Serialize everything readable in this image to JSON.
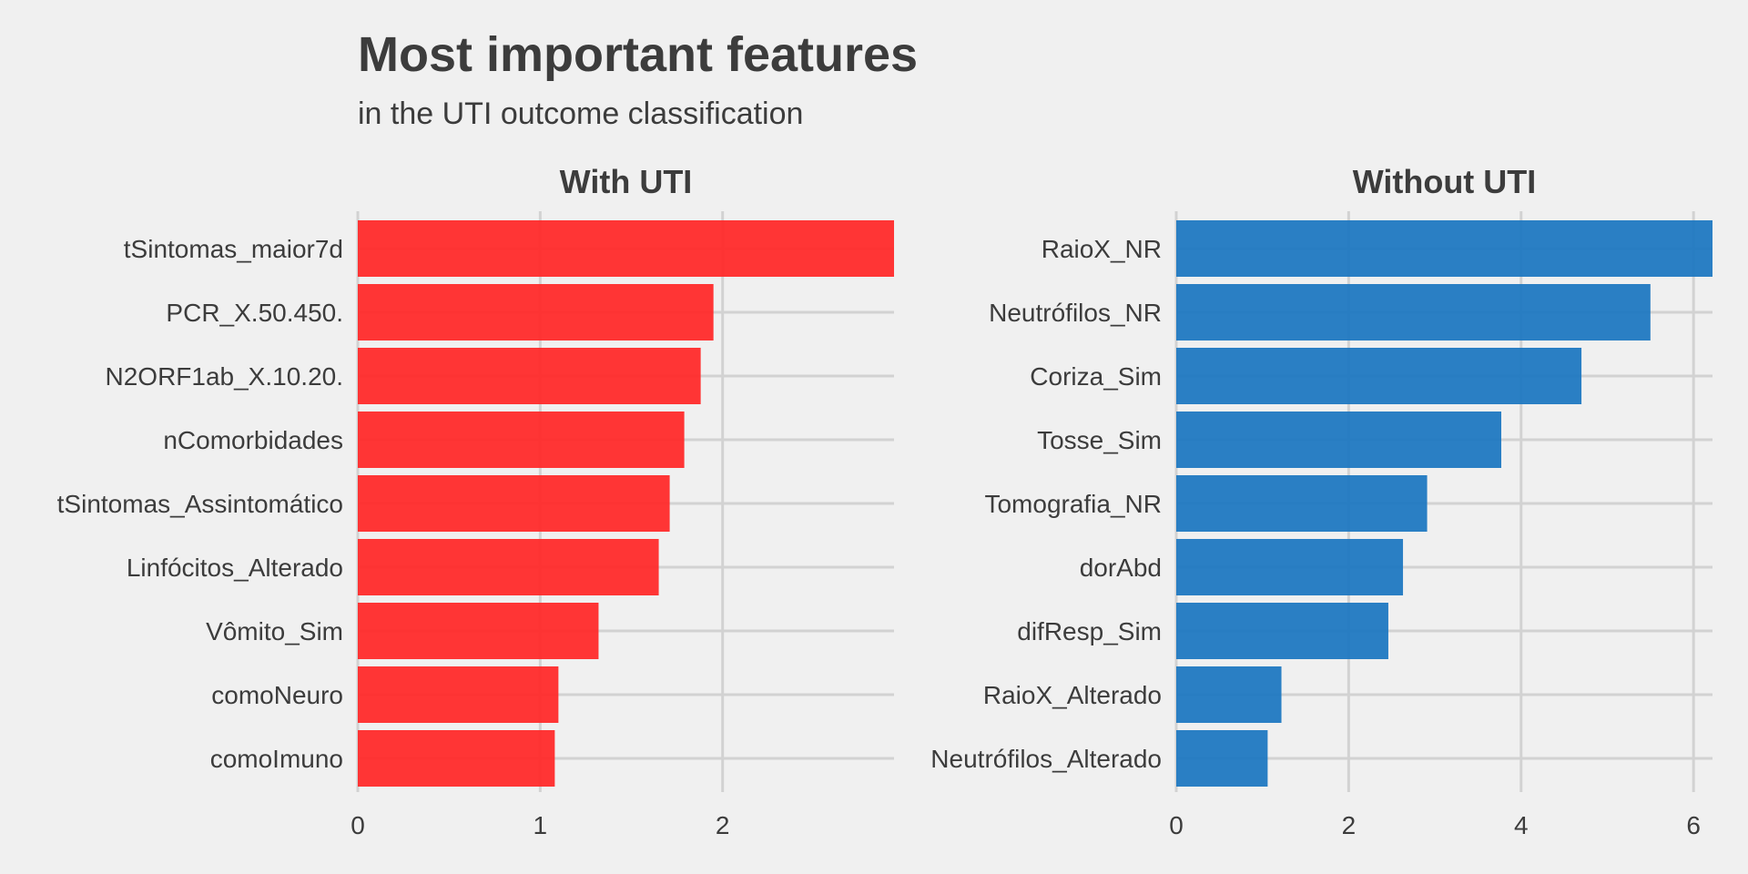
{
  "title": "Most important features",
  "subtitle": "in the UTI outcome classification",
  "chart_data": [
    {
      "type": "bar",
      "orientation": "horizontal",
      "title": "With UTI",
      "color": "#ff2a2a",
      "categories": [
        "tSintomas_maior7d",
        "PCR_X.50.450.",
        "N2ORF1ab_X.10.20.",
        "nComorbidades",
        "tSintomas_Assintomático",
        "Linfócitos_Alterado",
        "Vômito_Sim",
        "comoNeuro",
        "comoImuno"
      ],
      "values": [
        2.94,
        1.95,
        1.88,
        1.79,
        1.71,
        1.65,
        1.32,
        1.1,
        1.08
      ],
      "xlim": [
        0,
        2.94
      ],
      "xticks": [
        0,
        1,
        2
      ],
      "xlabel": "",
      "ylabel": "",
      "grid": true
    },
    {
      "type": "bar",
      "orientation": "horizontal",
      "title": "Without UTI",
      "color": "#1f78c1",
      "categories": [
        "RaioX_NR",
        "Neutrófilos_NR",
        "Coriza_Sim",
        "Tosse_Sim",
        "Tomografia_NR",
        "dorAbd",
        "difResp_Sim",
        "RaioX_Alterado",
        "Neutrófilos_Alterado"
      ],
      "values": [
        6.22,
        5.5,
        4.7,
        3.77,
        2.91,
        2.63,
        2.46,
        1.22,
        1.06
      ],
      "xlim": [
        0,
        6.22
      ],
      "xticks": [
        0,
        2,
        4,
        6
      ],
      "xlabel": "",
      "ylabel": "",
      "grid": true
    }
  ]
}
